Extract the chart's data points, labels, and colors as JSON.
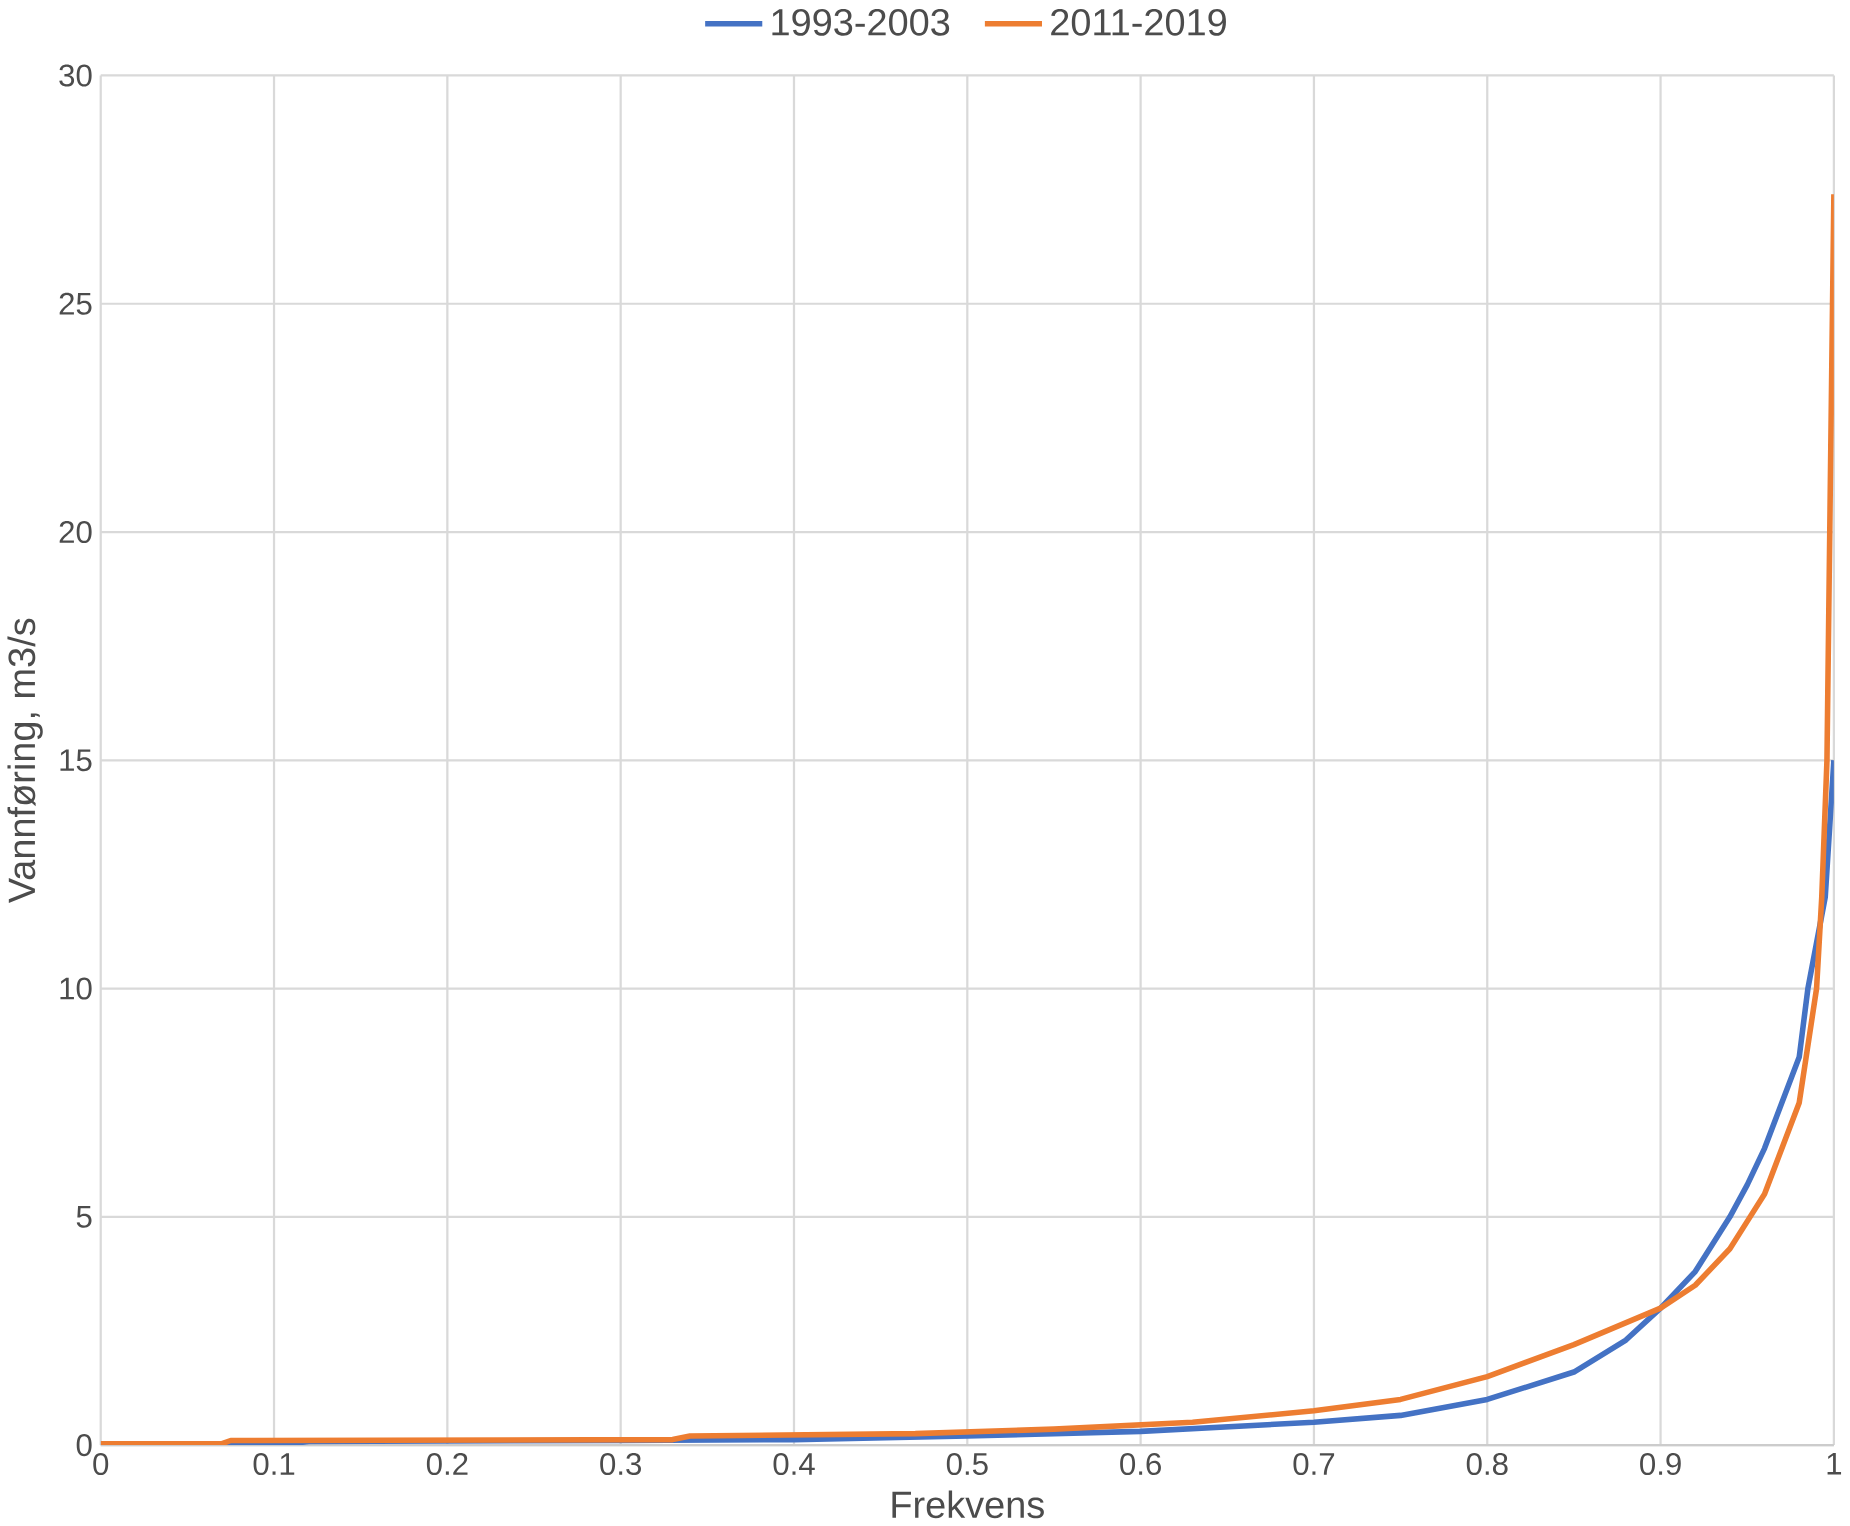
{
  "chart_data": {
    "type": "line",
    "xlabel": "Frekvens",
    "ylabel": "Vannføring, m3/s",
    "xlim": [
      0,
      1
    ],
    "ylim": [
      0,
      30
    ],
    "xticks": [
      0,
      0.1,
      0.2,
      0.3,
      0.4,
      0.5,
      0.6,
      0.7,
      0.8,
      0.9,
      1
    ],
    "yticks": [
      0,
      5,
      10,
      15,
      20,
      25,
      30
    ],
    "grid": true,
    "legend": "top",
    "marker": "none",
    "line_style": "solid",
    "series": [
      {
        "name": "1993-2003",
        "color": "#4472c4",
        "x": [
          0,
          0.11,
          0.12,
          0.3,
          0.4,
          0.5,
          0.6,
          0.7,
          0.75,
          0.8,
          0.85,
          0.88,
          0.9,
          0.92,
          0.94,
          0.95,
          0.96,
          0.97,
          0.98,
          0.985,
          0.99,
          0.995,
          1
        ],
        "values": [
          0.03,
          0.03,
          0.08,
          0.1,
          0.12,
          0.2,
          0.3,
          0.5,
          0.65,
          1.0,
          1.6,
          2.3,
          3.0,
          3.8,
          5.0,
          5.7,
          6.5,
          7.5,
          8.5,
          10,
          11,
          12,
          15
        ]
      },
      {
        "name": "2011-2019",
        "color": "#ed7d31",
        "x": [
          0,
          0.07,
          0.075,
          0.33,
          0.34,
          0.47,
          0.55,
          0.63,
          0.7,
          0.75,
          0.8,
          0.85,
          0.9,
          0.92,
          0.94,
          0.95,
          0.96,
          0.975,
          0.98,
          0.99,
          0.993,
          0.996,
          1
        ],
        "values": [
          0.03,
          0.03,
          0.1,
          0.12,
          0.2,
          0.25,
          0.35,
          0.5,
          0.75,
          1.0,
          1.5,
          2.2,
          3.0,
          3.5,
          4.3,
          4.9,
          5.5,
          7.0,
          7.5,
          10,
          12,
          15,
          27.4
        ]
      }
    ]
  }
}
